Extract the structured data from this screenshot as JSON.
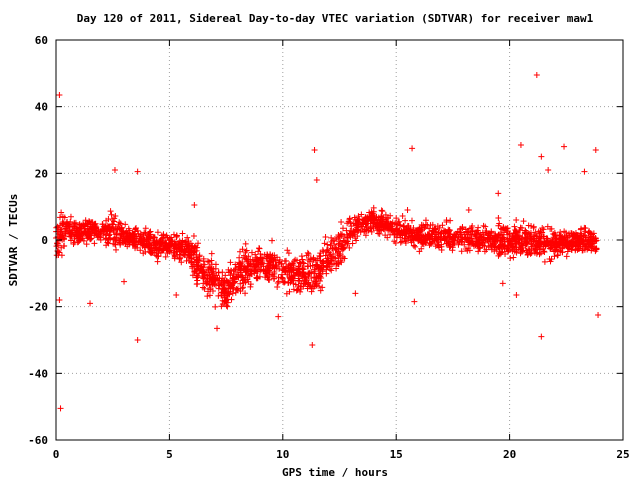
{
  "chart_data": {
    "type": "scatter",
    "title": "Day 120 of 2011, Sidereal Day-to-day VTEC variation (SDTVAR) for receiver maw1",
    "xlabel": "GPS time / hours",
    "ylabel": "SDTVAR / TECUs",
    "xlim": [
      0,
      25
    ],
    "ylim": [
      -60,
      60
    ],
    "xticks": [
      0,
      5,
      10,
      15,
      20,
      25
    ],
    "yticks": [
      -60,
      -40,
      -20,
      0,
      20,
      40,
      60
    ],
    "xtick_labels": [
      "0",
      "5",
      "10",
      "15",
      "20",
      "25"
    ],
    "ytick_labels": [
      "-60",
      "-40",
      "-20",
      "0",
      "20",
      "40",
      "60"
    ],
    "grid": true,
    "marker": "+",
    "color": "#ff0000",
    "trend": [
      {
        "x": 0.0,
        "y": 1
      },
      {
        "x": 0.5,
        "y": 3
      },
      {
        "x": 1.0,
        "y": 2
      },
      {
        "x": 1.5,
        "y": 3
      },
      {
        "x": 2.0,
        "y": 2
      },
      {
        "x": 2.5,
        "y": 3
      },
      {
        "x": 3.0,
        "y": 1
      },
      {
        "x": 3.5,
        "y": 0
      },
      {
        "x": 4.0,
        "y": -1
      },
      {
        "x": 4.5,
        "y": -2
      },
      {
        "x": 5.0,
        "y": -2
      },
      {
        "x": 5.5,
        "y": -2
      },
      {
        "x": 6.0,
        "y": -4
      },
      {
        "x": 6.5,
        "y": -10
      },
      {
        "x": 7.0,
        "y": -13
      },
      {
        "x": 7.5,
        "y": -15
      },
      {
        "x": 8.0,
        "y": -10
      },
      {
        "x": 8.5,
        "y": -8
      },
      {
        "x": 9.0,
        "y": -7
      },
      {
        "x": 9.5,
        "y": -7
      },
      {
        "x": 10.0,
        "y": -10
      },
      {
        "x": 10.5,
        "y": -10
      },
      {
        "x": 11.0,
        "y": -11
      },
      {
        "x": 11.5,
        "y": -10
      },
      {
        "x": 12.0,
        "y": -6
      },
      {
        "x": 12.5,
        "y": -2
      },
      {
        "x": 13.0,
        "y": 2
      },
      {
        "x": 13.5,
        "y": 5
      },
      {
        "x": 14.0,
        "y": 6
      },
      {
        "x": 14.5,
        "y": 5
      },
      {
        "x": 15.0,
        "y": 3
      },
      {
        "x": 15.5,
        "y": 2
      },
      {
        "x": 16.0,
        "y": 1
      },
      {
        "x": 17.0,
        "y": 1
      },
      {
        "x": 18.0,
        "y": 1
      },
      {
        "x": 19.0,
        "y": 0
      },
      {
        "x": 20.0,
        "y": 0
      },
      {
        "x": 21.0,
        "y": 0
      },
      {
        "x": 22.0,
        "y": -1
      },
      {
        "x": 23.0,
        "y": 0
      },
      {
        "x": 23.8,
        "y": -1
      }
    ],
    "outliers": [
      {
        "x": 0.15,
        "y": 43.5
      },
      {
        "x": 0.2,
        "y": -50.5
      },
      {
        "x": 0.15,
        "y": -18
      },
      {
        "x": 1.5,
        "y": -19
      },
      {
        "x": 3.6,
        "y": -30
      },
      {
        "x": 3.6,
        "y": 20.5
      },
      {
        "x": 2.6,
        "y": 21
      },
      {
        "x": 11.4,
        "y": 27
      },
      {
        "x": 11.3,
        "y": -31.5
      },
      {
        "x": 15.7,
        "y": 27.5
      },
      {
        "x": 15.8,
        "y": -18.5
      },
      {
        "x": 21.2,
        "y": 49.5
      },
      {
        "x": 20.5,
        "y": 28.5
      },
      {
        "x": 21.4,
        "y": 25
      },
      {
        "x": 21.4,
        "y": -29
      },
      {
        "x": 22.4,
        "y": 28
      },
      {
        "x": 23.8,
        "y": 27
      },
      {
        "x": 23.9,
        "y": -22.5
      },
      {
        "x": 7.1,
        "y": -26.5
      },
      {
        "x": 9.8,
        "y": -23
      },
      {
        "x": 11.5,
        "y": 18
      },
      {
        "x": 21.7,
        "y": 21
      },
      {
        "x": 23.3,
        "y": 20.5
      },
      {
        "x": 20.3,
        "y": -16.5
      },
      {
        "x": 19.7,
        "y": -13
      },
      {
        "x": 5.3,
        "y": -16.5
      },
      {
        "x": 6.1,
        "y": 10.5
      },
      {
        "x": 3.0,
        "y": -12.5
      },
      {
        "x": 15.5,
        "y": 9
      },
      {
        "x": 18.2,
        "y": 9
      },
      {
        "x": 19.5,
        "y": 14
      },
      {
        "x": 13.2,
        "y": -16
      }
    ]
  }
}
